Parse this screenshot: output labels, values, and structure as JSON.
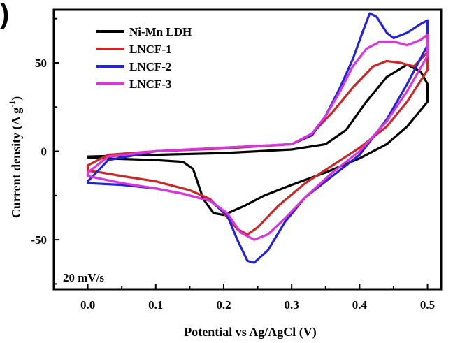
{
  "panel_label": ")",
  "chart_data": {
    "type": "line",
    "title": "",
    "xlabel": "Potential vs Ag/AgCl (V)",
    "ylabel_main": "Current density (A g",
    "ylabel_sup": "-1",
    "ylabel_close": ")",
    "xlim": [
      -0.05,
      0.52
    ],
    "ylim": [
      -78,
      80
    ],
    "xticks": [
      0.0,
      0.1,
      0.2,
      0.3,
      0.4,
      0.5
    ],
    "xtick_labels": [
      "0.0",
      "0.1",
      "0.2",
      "0.3",
      "0.4",
      "0.5"
    ],
    "yticks": [
      -50,
      0,
      50
    ],
    "ytick_labels": [
      "-50",
      "0",
      "50"
    ],
    "annotation": "20 mV/s",
    "legend_position": "top-left",
    "grid": false,
    "series": [
      {
        "name": "Ni-Mn LDH",
        "color": "#000000",
        "points": [
          [
            0.0,
            -3
          ],
          [
            0.1,
            -2
          ],
          [
            0.2,
            -1
          ],
          [
            0.3,
            1
          ],
          [
            0.35,
            4
          ],
          [
            0.38,
            12
          ],
          [
            0.41,
            28
          ],
          [
            0.44,
            42
          ],
          [
            0.47,
            49
          ],
          [
            0.49,
            45
          ],
          [
            0.5,
            38
          ],
          [
            0.5,
            28
          ],
          [
            0.47,
            14
          ],
          [
            0.44,
            4
          ],
          [
            0.4,
            -4
          ],
          [
            0.35,
            -12
          ],
          [
            0.3,
            -19
          ],
          [
            0.26,
            -25
          ],
          [
            0.23,
            -31
          ],
          [
            0.2,
            -36
          ],
          [
            0.185,
            -35
          ],
          [
            0.17,
            -27
          ],
          [
            0.155,
            -10
          ],
          [
            0.14,
            -6
          ],
          [
            0.1,
            -5
          ],
          [
            0.06,
            -4.5
          ],
          [
            0.02,
            -4
          ],
          [
            0.0,
            -3.5
          ]
        ]
      },
      {
        "name": "LNCF-1",
        "color": "#cc2727",
        "points": [
          [
            0.0,
            -8
          ],
          [
            0.03,
            -2
          ],
          [
            0.1,
            0
          ],
          [
            0.2,
            1.5
          ],
          [
            0.3,
            4
          ],
          [
            0.33,
            10
          ],
          [
            0.36,
            22
          ],
          [
            0.39,
            36
          ],
          [
            0.42,
            48
          ],
          [
            0.44,
            51
          ],
          [
            0.46,
            50
          ],
          [
            0.48,
            48
          ],
          [
            0.5,
            56
          ],
          [
            0.5,
            46
          ],
          [
            0.47,
            28
          ],
          [
            0.44,
            14
          ],
          [
            0.4,
            2
          ],
          [
            0.36,
            -8
          ],
          [
            0.32,
            -18
          ],
          [
            0.28,
            -31
          ],
          [
            0.25,
            -43
          ],
          [
            0.235,
            -47
          ],
          [
            0.22,
            -44
          ],
          [
            0.2,
            -35
          ],
          [
            0.18,
            -27
          ],
          [
            0.15,
            -22
          ],
          [
            0.1,
            -17
          ],
          [
            0.05,
            -14
          ],
          [
            0.02,
            -12
          ],
          [
            0.0,
            -11
          ]
        ]
      },
      {
        "name": "LNCF-2",
        "color": "#2222dd",
        "points": [
          [
            0.0,
            -17
          ],
          [
            0.03,
            -5
          ],
          [
            0.1,
            0
          ],
          [
            0.2,
            2
          ],
          [
            0.3,
            4
          ],
          [
            0.33,
            9
          ],
          [
            0.35,
            20
          ],
          [
            0.37,
            35
          ],
          [
            0.39,
            52
          ],
          [
            0.405,
            68
          ],
          [
            0.415,
            78
          ],
          [
            0.425,
            76
          ],
          [
            0.44,
            67
          ],
          [
            0.45,
            64
          ],
          [
            0.47,
            67
          ],
          [
            0.49,
            72
          ],
          [
            0.5,
            74
          ],
          [
            0.5,
            60
          ],
          [
            0.47,
            38
          ],
          [
            0.44,
            18
          ],
          [
            0.4,
            -2
          ],
          [
            0.36,
            -14
          ],
          [
            0.32,
            -26
          ],
          [
            0.29,
            -40
          ],
          [
            0.265,
            -56
          ],
          [
            0.245,
            -63
          ],
          [
            0.235,
            -62
          ],
          [
            0.22,
            -50
          ],
          [
            0.205,
            -36
          ],
          [
            0.18,
            -28
          ],
          [
            0.14,
            -24
          ],
          [
            0.1,
            -21
          ],
          [
            0.05,
            -19
          ],
          [
            0.0,
            -18
          ]
        ]
      },
      {
        "name": "LNCF-3",
        "color": "#dd33dd",
        "points": [
          [
            0.0,
            -12
          ],
          [
            0.03,
            -3
          ],
          [
            0.1,
            0
          ],
          [
            0.2,
            2
          ],
          [
            0.3,
            4
          ],
          [
            0.33,
            10
          ],
          [
            0.35,
            20
          ],
          [
            0.37,
            33
          ],
          [
            0.39,
            48
          ],
          [
            0.41,
            58
          ],
          [
            0.43,
            62
          ],
          [
            0.45,
            62
          ],
          [
            0.47,
            60
          ],
          [
            0.49,
            63
          ],
          [
            0.5,
            66
          ],
          [
            0.5,
            54
          ],
          [
            0.47,
            34
          ],
          [
            0.44,
            17
          ],
          [
            0.4,
            0
          ],
          [
            0.36,
            -12
          ],
          [
            0.32,
            -26
          ],
          [
            0.29,
            -38
          ],
          [
            0.265,
            -47
          ],
          [
            0.245,
            -50
          ],
          [
            0.225,
            -46
          ],
          [
            0.205,
            -35
          ],
          [
            0.18,
            -28
          ],
          [
            0.14,
            -24
          ],
          [
            0.1,
            -21
          ],
          [
            0.05,
            -18
          ],
          [
            0.0,
            -14
          ]
        ]
      }
    ]
  }
}
